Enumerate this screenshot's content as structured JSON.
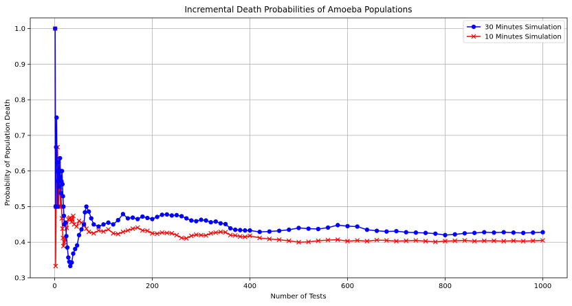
{
  "chart_data": {
    "type": "line",
    "title": "Incremental Death Probabilities of Amoeba Populations",
    "xlabel": "Number of Tests",
    "ylabel": "Probability of Population Death",
    "xlim": [
      -50,
      1050
    ],
    "ylim": [
      0.3,
      1.03
    ],
    "x_ticks": [
      0,
      200,
      400,
      600,
      800,
      1000
    ],
    "y_ticks": [
      0.3,
      0.4,
      0.5,
      0.6,
      0.7,
      0.8,
      0.9,
      1.0
    ],
    "x_tick_labels": [
      "0",
      "200",
      "400",
      "600",
      "800",
      "1000"
    ],
    "y_tick_labels": [
      "0.3",
      "0.4",
      "0.5",
      "0.6",
      "0.7",
      "0.8",
      "0.9",
      "1.0"
    ],
    "grid": true,
    "legend_position": "top-right",
    "series": [
      {
        "name": "30 Minutes Simulation",
        "color": "#0000ff",
        "marker": "circle",
        "points": [
          [
            1,
            1.0
          ],
          [
            2,
            0.5
          ],
          [
            3,
            0.667
          ],
          [
            4,
            0.75
          ],
          [
            5,
            0.6
          ],
          [
            6,
            0.5
          ],
          [
            7,
            0.571
          ],
          [
            8,
            0.625
          ],
          [
            9,
            0.556
          ],
          [
            10,
            0.6
          ],
          [
            11,
            0.636
          ],
          [
            12,
            0.583
          ],
          [
            13,
            0.538
          ],
          [
            14,
            0.571
          ],
          [
            15,
            0.6
          ],
          [
            16,
            0.563
          ],
          [
            17,
            0.529
          ],
          [
            18,
            0.5
          ],
          [
            19,
            0.474
          ],
          [
            20,
            0.45
          ],
          [
            22,
            0.455
          ],
          [
            24,
            0.417
          ],
          [
            26,
            0.385
          ],
          [
            28,
            0.357
          ],
          [
            30,
            0.345
          ],
          [
            32,
            0.333
          ],
          [
            35,
            0.343
          ],
          [
            38,
            0.368
          ],
          [
            42,
            0.381
          ],
          [
            46,
            0.391
          ],
          [
            50,
            0.42
          ],
          [
            55,
            0.436
          ],
          [
            60,
            0.45
          ],
          [
            62,
            0.484
          ],
          [
            65,
            0.5
          ],
          [
            70,
            0.486
          ],
          [
            75,
            0.467
          ],
          [
            80,
            0.45
          ],
          [
            90,
            0.444
          ],
          [
            100,
            0.45
          ],
          [
            110,
            0.455
          ],
          [
            120,
            0.45
          ],
          [
            130,
            0.462
          ],
          [
            140,
            0.479
          ],
          [
            150,
            0.467
          ],
          [
            160,
            0.469
          ],
          [
            170,
            0.465
          ],
          [
            180,
            0.472
          ],
          [
            190,
            0.468
          ],
          [
            200,
            0.465
          ],
          [
            210,
            0.471
          ],
          [
            220,
            0.477
          ],
          [
            230,
            0.478
          ],
          [
            240,
            0.475
          ],
          [
            250,
            0.476
          ],
          [
            260,
            0.473
          ],
          [
            270,
            0.467
          ],
          [
            280,
            0.461
          ],
          [
            290,
            0.459
          ],
          [
            300,
            0.463
          ],
          [
            310,
            0.461
          ],
          [
            320,
            0.456
          ],
          [
            330,
            0.458
          ],
          [
            340,
            0.453
          ],
          [
            350,
            0.451
          ],
          [
            360,
            0.439
          ],
          [
            370,
            0.435
          ],
          [
            380,
            0.434
          ],
          [
            390,
            0.433
          ],
          [
            400,
            0.433
          ],
          [
            420,
            0.429
          ],
          [
            440,
            0.43
          ],
          [
            460,
            0.432
          ],
          [
            480,
            0.435
          ],
          [
            500,
            0.44
          ],
          [
            520,
            0.438
          ],
          [
            540,
            0.437
          ],
          [
            560,
            0.441
          ],
          [
            580,
            0.448
          ],
          [
            600,
            0.445
          ],
          [
            620,
            0.444
          ],
          [
            640,
            0.435
          ],
          [
            660,
            0.432
          ],
          [
            680,
            0.43
          ],
          [
            700,
            0.431
          ],
          [
            720,
            0.428
          ],
          [
            740,
            0.427
          ],
          [
            760,
            0.426
          ],
          [
            780,
            0.424
          ],
          [
            800,
            0.42
          ],
          [
            820,
            0.422
          ],
          [
            840,
            0.425
          ],
          [
            860,
            0.426
          ],
          [
            880,
            0.428
          ],
          [
            900,
            0.427
          ],
          [
            920,
            0.428
          ],
          [
            940,
            0.427
          ],
          [
            960,
            0.426
          ],
          [
            980,
            0.427
          ],
          [
            1000,
            0.428
          ]
        ]
      },
      {
        "name": "10 Minutes Simulation",
        "color": "#ff0000",
        "marker": "x",
        "points": [
          [
            1,
            1.0
          ],
          [
            2,
            0.333
          ],
          [
            3,
            0.5
          ],
          [
            4,
            0.5
          ],
          [
            5,
            0.6
          ],
          [
            6,
            0.667
          ],
          [
            7,
            0.571
          ],
          [
            8,
            0.5
          ],
          [
            9,
            0.556
          ],
          [
            10,
            0.6
          ],
          [
            11,
            0.545
          ],
          [
            12,
            0.5
          ],
          [
            13,
            0.538
          ],
          [
            14,
            0.5
          ],
          [
            15,
            0.467
          ],
          [
            16,
            0.438
          ],
          [
            17,
            0.412
          ],
          [
            18,
            0.389
          ],
          [
            20,
            0.4
          ],
          [
            22,
            0.409
          ],
          [
            25,
            0.44
          ],
          [
            28,
            0.464
          ],
          [
            30,
            0.467
          ],
          [
            32,
            0.469
          ],
          [
            35,
            0.457
          ],
          [
            38,
            0.474
          ],
          [
            40,
            0.45
          ],
          [
            45,
            0.444
          ],
          [
            50,
            0.46
          ],
          [
            55,
            0.455
          ],
          [
            60,
            0.45
          ],
          [
            65,
            0.438
          ],
          [
            70,
            0.429
          ],
          [
            80,
            0.425
          ],
          [
            90,
            0.433
          ],
          [
            100,
            0.43
          ],
          [
            110,
            0.436
          ],
          [
            120,
            0.425
          ],
          [
            130,
            0.423
          ],
          [
            140,
            0.429
          ],
          [
            150,
            0.433
          ],
          [
            160,
            0.438
          ],
          [
            170,
            0.441
          ],
          [
            180,
            0.433
          ],
          [
            190,
            0.432
          ],
          [
            200,
            0.425
          ],
          [
            210,
            0.424
          ],
          [
            220,
            0.427
          ],
          [
            230,
            0.426
          ],
          [
            240,
            0.425
          ],
          [
            250,
            0.42
          ],
          [
            260,
            0.412
          ],
          [
            270,
            0.411
          ],
          [
            280,
            0.418
          ],
          [
            290,
            0.421
          ],
          [
            300,
            0.42
          ],
          [
            310,
            0.419
          ],
          [
            320,
            0.425
          ],
          [
            330,
            0.427
          ],
          [
            340,
            0.429
          ],
          [
            350,
            0.428
          ],
          [
            360,
            0.42
          ],
          [
            370,
            0.419
          ],
          [
            380,
            0.416
          ],
          [
            390,
            0.415
          ],
          [
            400,
            0.418
          ],
          [
            420,
            0.412
          ],
          [
            440,
            0.409
          ],
          [
            460,
            0.407
          ],
          [
            480,
            0.404
          ],
          [
            500,
            0.4
          ],
          [
            520,
            0.401
          ],
          [
            540,
            0.404
          ],
          [
            560,
            0.406
          ],
          [
            580,
            0.407
          ],
          [
            600,
            0.403
          ],
          [
            620,
            0.405
          ],
          [
            640,
            0.403
          ],
          [
            660,
            0.406
          ],
          [
            680,
            0.405
          ],
          [
            700,
            0.403
          ],
          [
            720,
            0.404
          ],
          [
            740,
            0.405
          ],
          [
            760,
            0.403
          ],
          [
            780,
            0.401
          ],
          [
            800,
            0.403
          ],
          [
            820,
            0.404
          ],
          [
            840,
            0.405
          ],
          [
            860,
            0.403
          ],
          [
            880,
            0.404
          ],
          [
            900,
            0.404
          ],
          [
            920,
            0.403
          ],
          [
            940,
            0.404
          ],
          [
            960,
            0.403
          ],
          [
            980,
            0.404
          ],
          [
            1000,
            0.405
          ]
        ]
      }
    ]
  }
}
